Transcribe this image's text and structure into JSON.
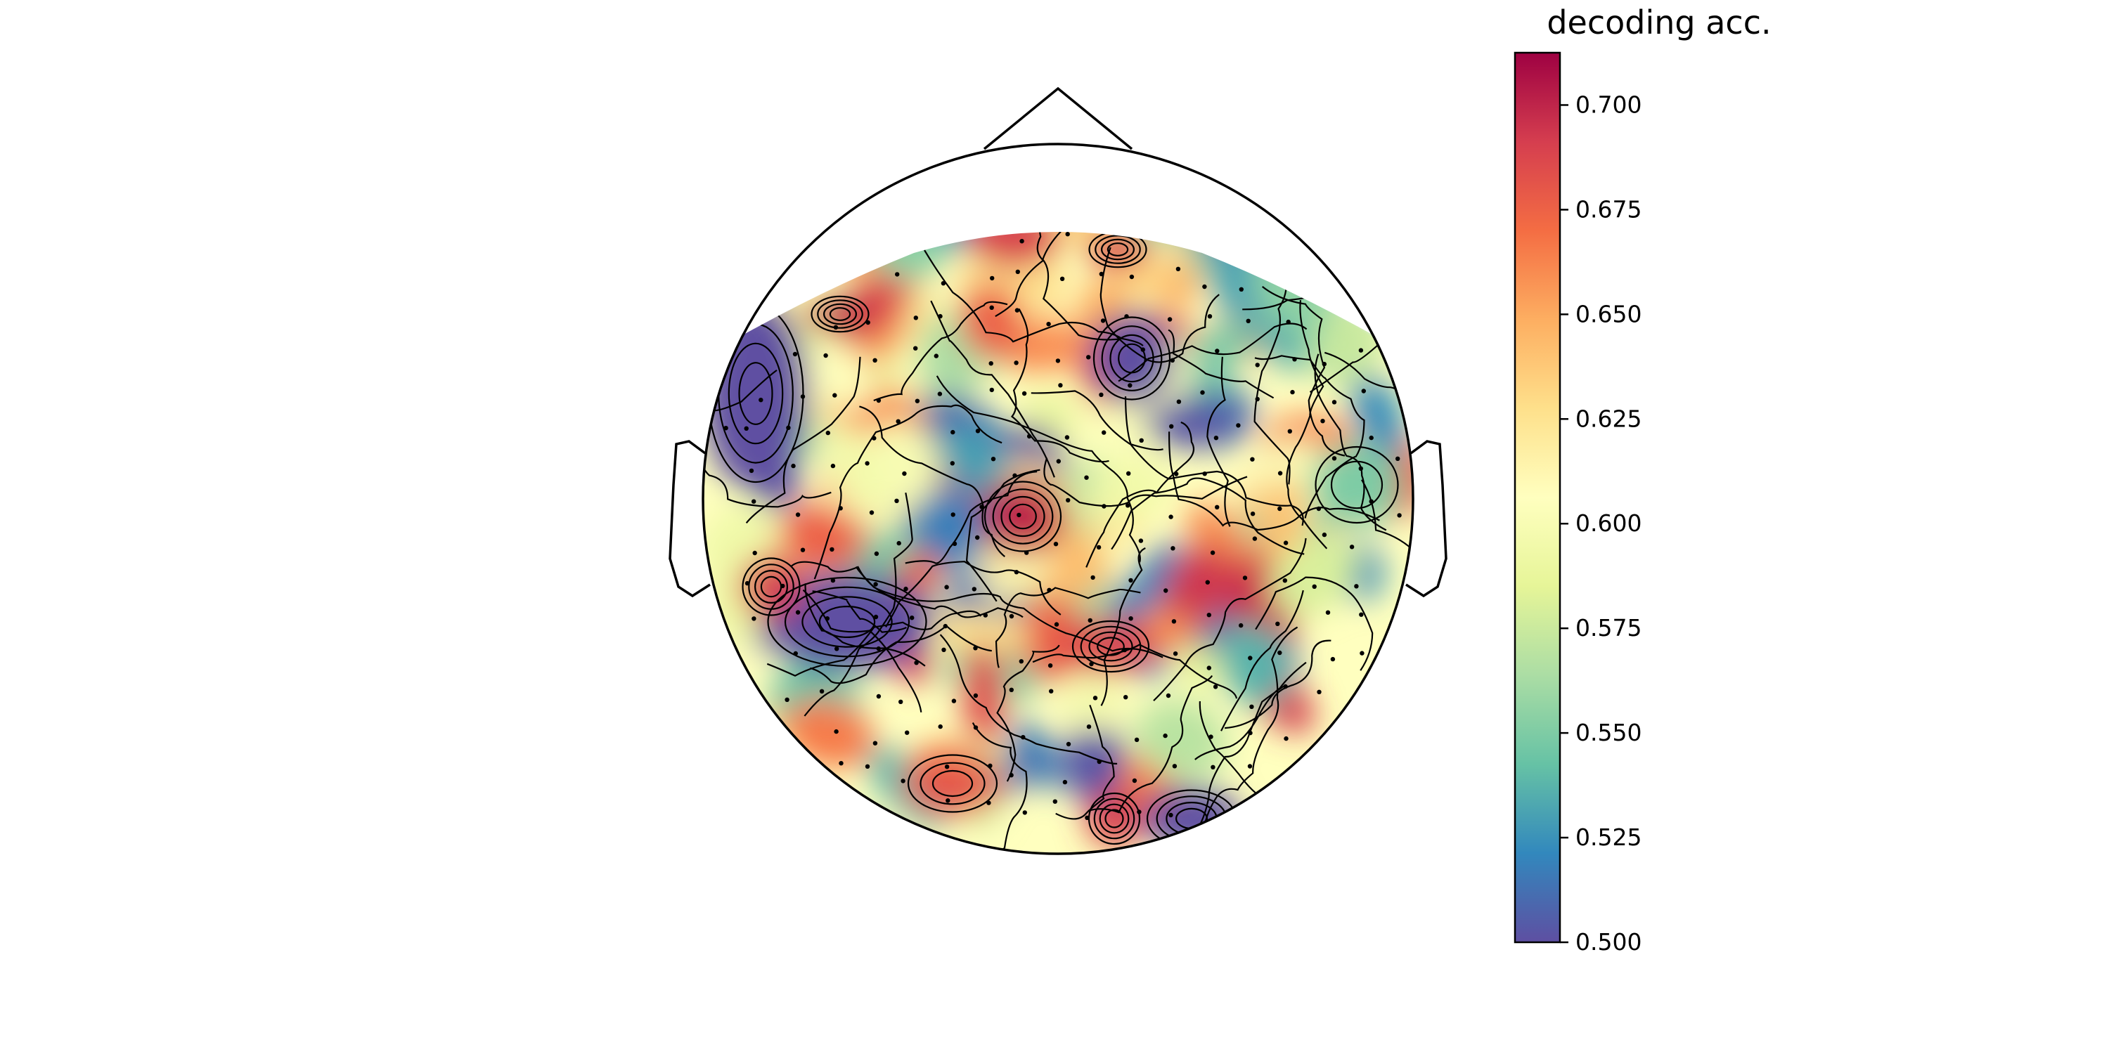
{
  "chart_data": {
    "type": "heatmap",
    "subtype": "topomap",
    "colormap": [
      "#5e4fa2",
      "#3288bd",
      "#66c2a5",
      "#abdda4",
      "#e6f598",
      "#ffffbf",
      "#fee08b",
      "#fdae61",
      "#f46d43",
      "#d53e4f",
      "#9e0142"
    ],
    "colorbar": {
      "title": "decoding acc.",
      "range": [
        0.5,
        0.7125
      ],
      "ticks": [
        0.5,
        0.525,
        0.55,
        0.575,
        0.6,
        0.625,
        0.65,
        0.675,
        0.7
      ],
      "tick_labels": [
        "0.500",
        "0.525",
        "0.550",
        "0.575",
        "0.600",
        "0.625",
        "0.650",
        "0.675",
        "0.700"
      ]
    },
    "contour_levels": [
      0.525,
      0.55,
      0.575,
      0.6,
      0.625,
      0.65,
      0.675,
      0.7
    ],
    "head": {
      "nose": true,
      "ears": true
    },
    "sensors": "points marked as small black dots (~270 sensors)",
    "hotspots": [
      {
        "location": "left frontal edge",
        "value": 0.5
      },
      {
        "location": "left temporal",
        "value": 0.5
      },
      {
        "location": "left central",
        "value": 0.69
      },
      {
        "location": "frontal top",
        "value": 0.69
      },
      {
        "location": "frontal left-upper",
        "value": 0.7
      },
      {
        "location": "mid-frontal",
        "value": 0.5
      },
      {
        "location": "central",
        "value": 0.7
      },
      {
        "location": "right central",
        "value": 0.69
      },
      {
        "location": "occipital left",
        "value": 0.68
      },
      {
        "location": "occipital center",
        "value": 0.69
      },
      {
        "location": "occipital right",
        "value": 0.5
      },
      {
        "location": "right temporal",
        "value": 0.55
      }
    ]
  }
}
